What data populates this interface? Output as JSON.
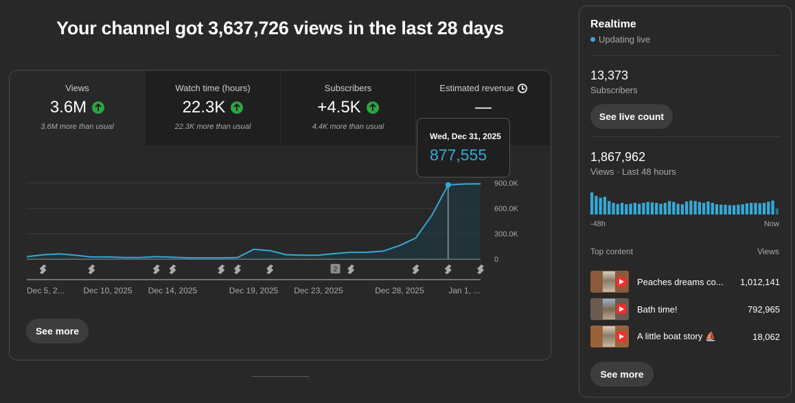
{
  "headline": "Your channel got 3,637,726 views in the last 28 days",
  "metrics": [
    {
      "label": "Views",
      "value": "3.6M",
      "note": "3.6M more than usual",
      "trend": "up"
    },
    {
      "label": "Watch time (hours)",
      "value": "22.3K",
      "note": "22.3K more than usual",
      "trend": "up"
    },
    {
      "label": "Subscribers",
      "value": "+4.5K",
      "note": "4.4K more than usual",
      "trend": "up"
    },
    {
      "label": "Estimated revenue",
      "value": "—",
      "note": "",
      "trend": "none"
    }
  ],
  "tooltip": {
    "date": "Wed, Dec 31, 2025",
    "value": "877,555"
  },
  "chart_data": {
    "type": "area",
    "title": "Views",
    "y_ticks": [
      "900.0K",
      "600.0K",
      "300.0K",
      "0"
    ],
    "ylim": [
      0,
      1000000
    ],
    "x_labels": [
      "Dec 5, 2...",
      "Dec 10, 2025",
      "Dec 14, 2025",
      "Dec 19, 2025",
      "Dec 23, 2025",
      "Dec 28, 2025",
      "Jan 1, ..."
    ],
    "values": [
      28000,
      50000,
      62000,
      45000,
      25000,
      25000,
      18000,
      18000,
      28000,
      22000,
      14000,
      14000,
      14000,
      18000,
      115000,
      100000,
      52000,
      45000,
      45000,
      65000,
      80000,
      80000,
      95000,
      160000,
      250000,
      520000,
      877555,
      888000,
      890000
    ],
    "highlight_index": 26,
    "marker_badge": "2"
  },
  "buttons": {
    "see_more": "See more",
    "see_live": "See live count"
  },
  "realtime": {
    "title": "Realtime",
    "status": "Updating live",
    "subscribers_value": "13,373",
    "subscribers_label": "Subscribers",
    "views_value": "1,867,962",
    "views_label": "Views · Last 48 hours",
    "bars": [
      0.95,
      0.8,
      0.72,
      0.76,
      0.58,
      0.5,
      0.45,
      0.5,
      0.44,
      0.46,
      0.5,
      0.46,
      0.5,
      0.54,
      0.52,
      0.5,
      0.46,
      0.5,
      0.58,
      0.54,
      0.46,
      0.44,
      0.56,
      0.6,
      0.58,
      0.54,
      0.5,
      0.56,
      0.5,
      0.44,
      0.42,
      0.42,
      0.4,
      0.4,
      0.42,
      0.44,
      0.48,
      0.5,
      0.5,
      0.48,
      0.5,
      0.55,
      0.6,
      0.25
    ],
    "axis_start": "-48h",
    "axis_end": "Now",
    "top_content_label": "Top content",
    "views_col_label": "Views",
    "top_content": [
      {
        "title": "Peaches dreams co...",
        "views": "1,012,141"
      },
      {
        "title": "Bath time!",
        "views": "792,965"
      },
      {
        "title": "A little boat story ⛵",
        "views": "18,062"
      }
    ]
  }
}
